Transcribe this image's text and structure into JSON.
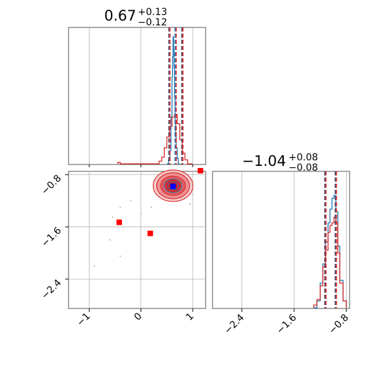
{
  "chart_data": [
    {
      "type": "histogram",
      "panel": "marginal-x",
      "title_main": "0.67",
      "title_plus": "+0.13",
      "title_minus": "−0.12",
      "xlim": [
        -1.4,
        1.25
      ],
      "quantile_lines": [
        0.55,
        0.67,
        0.8
      ],
      "series": [
        {
          "color": "#1f77b4",
          "bins": [
            0.5,
            0.53,
            0.56,
            0.58,
            0.6,
            0.61,
            0.62,
            0.63,
            0.64,
            0.65,
            0.66,
            0.67,
            0.68,
            0.7,
            0.72,
            0.75
          ],
          "counts": [
            0.0,
            0.03,
            0.1,
            0.35,
            0.65,
            0.8,
            0.95,
            0.85,
            0.72,
            0.5,
            0.3,
            0.2,
            0.12,
            0.04,
            0.0
          ]
        },
        {
          "color": "#d62728",
          "bins": [
            -0.45,
            -0.4,
            0.35,
            0.4,
            0.45,
            0.5,
            0.55,
            0.6,
            0.65,
            0.7,
            0.75,
            0.8,
            0.85,
            0.9,
            1.0
          ],
          "counts": [
            0.01,
            0.0,
            0.02,
            0.05,
            0.12,
            0.2,
            0.28,
            0.35,
            0.37,
            0.3,
            0.18,
            0.08,
            0.03,
            0.0
          ]
        }
      ]
    },
    {
      "type": "scatter",
      "panel": "joint",
      "xlim": [
        -1.4,
        1.25
      ],
      "ylim": [
        -2.85,
        -0.75
      ],
      "x_ticks": [
        -1,
        0,
        1
      ],
      "x_tick_labels": [
        "−1",
        "0",
        "1"
      ],
      "y_ticks": [
        -0.8,
        -1.6,
        -2.4
      ],
      "y_tick_labels": [
        "−0.8",
        "−1.6",
        "−2.4"
      ],
      "grid": true,
      "contour_center": [
        0.62,
        -0.97
      ],
      "marker_blue": [
        0.62,
        -0.98
      ],
      "markers_red": [
        [
          -0.42,
          -1.53
        ],
        [
          0.18,
          -1.7
        ],
        [
          1.15,
          -0.74
        ]
      ],
      "sparse_points": [
        [
          -0.4,
          -1.3
        ],
        [
          -0.55,
          -1.45
        ],
        [
          -0.6,
          -1.8
        ],
        [
          -0.4,
          -2.05
        ],
        [
          -0.9,
          -2.2
        ],
        [
          0.2,
          -1.3
        ],
        [
          0.0,
          -1.4
        ],
        [
          -0.2,
          -1.2
        ],
        [
          0.95,
          -1.25
        ],
        [
          1.0,
          -1.1
        ]
      ]
    },
    {
      "type": "histogram",
      "panel": "marginal-y",
      "title_main": "−1.04",
      "title_plus": "+0.08",
      "title_minus": "−0.08",
      "xlim": [
        -2.85,
        -0.75
      ],
      "x_ticks": [
        -2.4,
        -1.6,
        -0.8
      ],
      "x_tick_labels": [
        "−2.4",
        "−1.6",
        "−0.8"
      ],
      "quantile_lines": [
        -1.12,
        -0.96
      ],
      "series": [
        {
          "color": "#1f77b4",
          "bins": [
            -1.3,
            -1.25,
            -1.2,
            -1.16,
            -1.12,
            -1.08,
            -1.05,
            -1.02,
            -0.99,
            -0.96,
            -0.93,
            -0.9,
            -0.85,
            -0.8
          ],
          "counts": [
            0.0,
            0.05,
            0.18,
            0.32,
            0.48,
            0.62,
            0.72,
            0.8,
            0.82,
            0.7,
            0.45,
            0.2,
            0.05
          ]
        },
        {
          "color": "#d62728",
          "bins": [
            -1.3,
            -1.25,
            -1.2,
            -1.16,
            -1.12,
            -1.08,
            -1.05,
            -1.02,
            -0.99,
            -0.96,
            -0.93,
            -0.9,
            -0.85,
            -0.8
          ],
          "counts": [
            0.02,
            0.06,
            0.16,
            0.3,
            0.42,
            0.55,
            0.6,
            0.62,
            0.66,
            0.62,
            0.4,
            0.18,
            0.05
          ]
        }
      ]
    }
  ],
  "colors": {
    "blue": "#1f77b4",
    "red": "#d62728",
    "grid": "#b0b0b0",
    "quantile_dark": "#4a4a6a",
    "marker_blue": "#0000ff",
    "marker_red": "#ff0000"
  }
}
